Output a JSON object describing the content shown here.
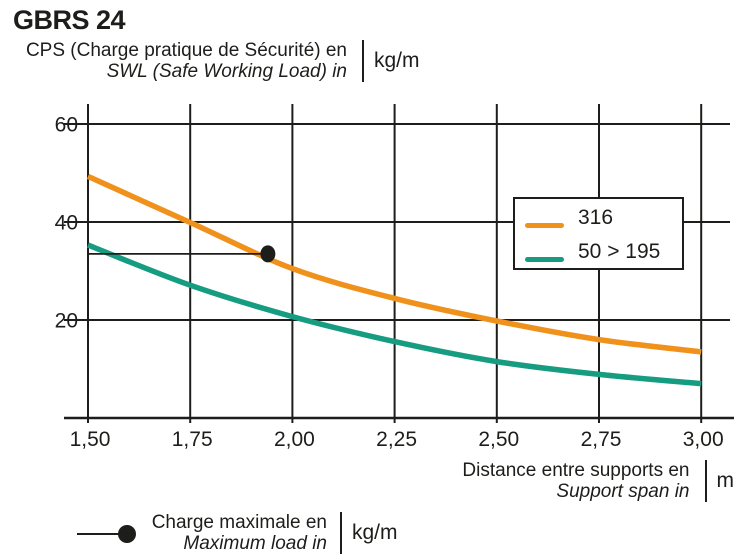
{
  "header": {
    "title": "GBRS 24",
    "y_axis_label_fr": "CPS (Charge pratique de Sécurité) en",
    "y_axis_label_en": "SWL (Safe Working Load) in",
    "y_axis_unit": "kg/m"
  },
  "x_axis": {
    "label_fr": "Distance entre supports en",
    "label_en": "Support span in",
    "unit": "m"
  },
  "annotation": {
    "label_fr": "Charge maximale en",
    "label_en": "Maximum load in",
    "unit": "kg/m"
  },
  "chart_data": {
    "type": "line",
    "x": [
      1.5,
      1.75,
      2.0,
      2.25,
      2.5,
      2.75,
      3.0
    ],
    "x_tick_labels": [
      "1,50",
      "1,75",
      "2,00",
      "2,25",
      "2,50",
      "2,75",
      "3,00"
    ],
    "y_ticks": [
      20,
      40,
      60
    ],
    "y_tick_labels": [
      "20",
      "40",
      "60"
    ],
    "xlim": [
      1.5,
      3.0
    ],
    "ylim": [
      0,
      64
    ],
    "grid": true,
    "legend_position": "upper right",
    "series": [
      {
        "name": "316",
        "color": "#F0911C",
        "values": [
          49.3,
          39.9,
          30.5,
          24.4,
          19.8,
          16.0,
          13.5
        ]
      },
      {
        "name": "50 > 195",
        "color": "#169C80",
        "values": [
          35.3,
          27.1,
          20.7,
          15.6,
          11.5,
          8.9,
          7.0
        ]
      }
    ],
    "marker_point": {
      "series": "316",
      "x": 1.94,
      "y": 33.5
    },
    "ink_color": "#1d1d1b"
  }
}
